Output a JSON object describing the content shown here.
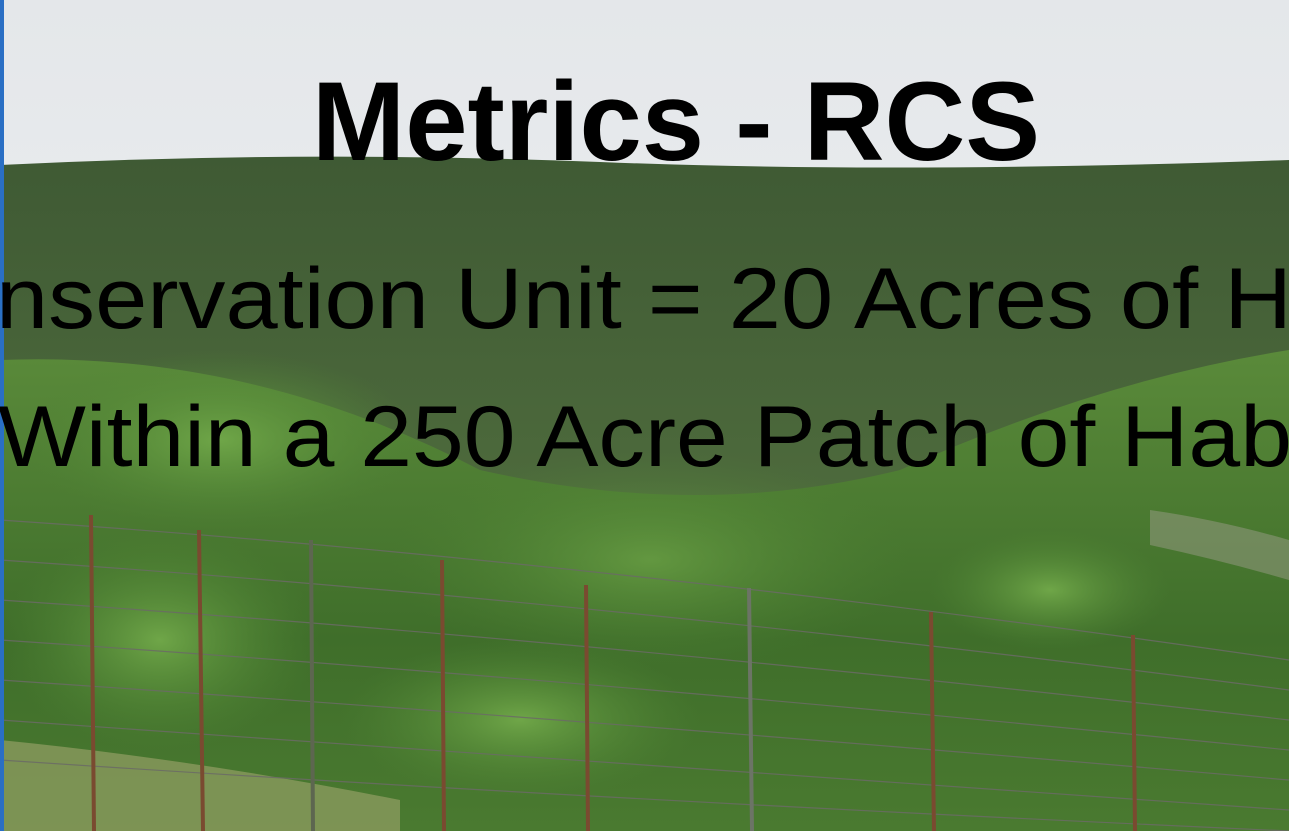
{
  "slide": {
    "title": "Metrics - RCS",
    "lines": [
      "nservation Unit = 20 Acres of H",
      "Within a 250 Acre Patch of Hab"
    ]
  }
}
